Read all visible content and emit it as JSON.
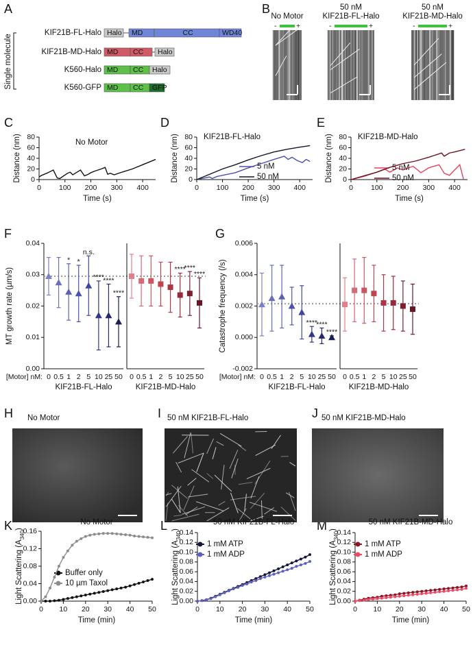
{
  "panel_labels": [
    "A",
    "B",
    "C",
    "D",
    "E",
    "F",
    "G",
    "H",
    "I",
    "J",
    "K",
    "L",
    "M"
  ],
  "diagram": {
    "ylabel": "Single molecule",
    "constructs": [
      {
        "name": "KIF21B-FL-Halo",
        "domains": [
          "Halo",
          "MD",
          "CC",
          "WD40"
        ]
      },
      {
        "name": "KIF21B-MD-Halo",
        "domains": [
          "MD",
          "CC",
          "Halo"
        ]
      },
      {
        "name": "K560-Halo",
        "domains": [
          "MD",
          "CC",
          "Halo"
        ]
      },
      {
        "name": "K560-GFP",
        "domains": [
          "MD",
          "CC",
          "GFP"
        ]
      }
    ]
  },
  "kymographs": {
    "titles": [
      [
        "No Motor"
      ],
      [
        "50 nM",
        "KIF21B-FL-Halo"
      ],
      [
        "50 nM",
        "KIF21B-MD-Halo"
      ]
    ],
    "minus": "-",
    "plus": "+"
  },
  "images": {
    "titles": [
      "No Motor",
      "50 nM KIF21B-FL-Halo",
      "50 nM KIF21B-MD-Halo"
    ]
  },
  "chart_data": [
    {
      "type": "line",
      "title": "No Motor",
      "xlabel": "Time (s)",
      "ylabel": "Distance (nm)",
      "xlim": [
        0,
        450
      ],
      "xticks": [
        0,
        100,
        200,
        300,
        400
      ],
      "ylim": [
        0,
        80
      ],
      "yticks": [
        0,
        20,
        40,
        60,
        80
      ],
      "series": [
        {
          "color": "#111111",
          "x": [
            0,
            10,
            30,
            55,
            70,
            80,
            110,
            120,
            130,
            140,
            160,
            175,
            190,
            200,
            215,
            240,
            255,
            265,
            275,
            290,
            320,
            360,
            400,
            450
          ],
          "values": [
            5,
            8,
            12,
            18,
            3,
            2,
            12,
            14,
            9,
            12,
            18,
            7,
            10,
            13,
            16,
            20,
            23,
            10,
            12,
            9,
            14,
            20,
            28,
            38
          ]
        }
      ]
    },
    {
      "type": "line",
      "title": "KIF21B-FL-Halo",
      "xlabel": "Time (s)",
      "ylabel": "Distance (nm)",
      "xlim": [
        0,
        450
      ],
      "xticks": [
        0,
        100,
        200,
        300,
        400
      ],
      "ylim": [
        0,
        80
      ],
      "yticks": [
        0,
        20,
        40,
        60,
        80
      ],
      "series": [
        {
          "name": "5 nM",
          "color": "#4b4fae",
          "x": [
            0,
            30,
            50,
            60,
            80,
            100,
            150,
            200,
            250,
            300,
            340,
            355,
            370,
            390,
            410,
            425,
            440
          ],
          "values": [
            0,
            3,
            5,
            2,
            6,
            8,
            13,
            22,
            30,
            38,
            44,
            38,
            42,
            36,
            32,
            38,
            34
          ]
        },
        {
          "name": "50 nM",
          "color": "#141428",
          "x": [
            0,
            50,
            100,
            150,
            200,
            250,
            300,
            350,
            400,
            440
          ],
          "values": [
            0,
            10,
            20,
            28,
            37,
            45,
            52,
            57,
            61,
            64
          ]
        }
      ]
    },
    {
      "type": "line",
      "title": "KIF21B-MD-Halo",
      "xlabel": "Time (s)",
      "ylabel": "Distance (nm)",
      "xlim": [
        0,
        450
      ],
      "xticks": [
        0,
        100,
        200,
        300,
        400
      ],
      "ylim": [
        0,
        80
      ],
      "yticks": [
        0,
        20,
        40,
        60,
        80
      ],
      "series": [
        {
          "name": "5 nM",
          "color": "#e8405a",
          "x": [
            0,
            50,
            100,
            130,
            150,
            180,
            200,
            240,
            270,
            300,
            340,
            360,
            380,
            420,
            435
          ],
          "values": [
            0,
            6,
            14,
            20,
            14,
            22,
            18,
            25,
            13,
            22,
            28,
            12,
            8,
            28,
            0
          ]
        },
        {
          "name": "50 nM",
          "color": "#6e1020",
          "x": [
            0,
            50,
            100,
            150,
            200,
            250,
            300,
            350,
            360,
            380,
            400,
            440
          ],
          "values": [
            0,
            7,
            14,
            23,
            30,
            35,
            42,
            50,
            44,
            50,
            52,
            57
          ]
        }
      ]
    },
    {
      "type": "dots",
      "ylabel": "MT growth rate (µm/s)",
      "xlabel": "[Motor] nM:",
      "categories": [
        "0",
        "0.5",
        "1",
        "2",
        "5",
        "10",
        "25",
        "50"
      ],
      "ylim": [
        0,
        0.04
      ],
      "yticks": [
        {
          "value": 0,
          "label": "0.00"
        },
        0.01,
        0.02,
        0.03,
        0.04
      ],
      "reference": 0.0295,
      "series": [
        {
          "name": "KIF21B-FL-Halo",
          "marker": "triangle",
          "colors": [
            "#7b7fc4",
            "#6a6fbd",
            "#5a60b5",
            "#4b52ad",
            "#3e46a0",
            "#2f3786",
            "#24296b",
            "#1b1e52"
          ],
          "values": [
            0.0295,
            0.0275,
            0.0245,
            0.024,
            0.0265,
            0.017,
            0.017,
            0.015
          ],
          "errors": [
            0.006,
            0.008,
            0.009,
            0.009,
            0.0095,
            0.011,
            0.01,
            0.008
          ],
          "annotations": [
            null,
            null,
            "*",
            "*",
            "n.s.",
            "****",
            "****",
            "****"
          ]
        },
        {
          "name": "KIF21B-MD-Halo",
          "marker": "square",
          "colors": [
            "#e0808a",
            "#d46a75",
            "#c95662",
            "#be4452",
            "#ad3646",
            "#96293a",
            "#7e1f30",
            "#661827"
          ],
          "values": [
            0.0295,
            0.028,
            0.028,
            0.027,
            0.026,
            0.0235,
            0.024,
            0.021
          ],
          "errors": [
            0.007,
            0.008,
            0.008,
            0.007,
            0.008,
            0.007,
            0.007,
            0.008
          ],
          "annotations": [
            null,
            null,
            null,
            null,
            null,
            "****",
            "****",
            "****"
          ]
        }
      ]
    },
    {
      "type": "dots",
      "ylabel": "Catastrophe frequency (/s)",
      "xlabel": "[Motor] nM:",
      "categories": [
        "0",
        "0.5",
        "1",
        "2",
        "5",
        "10",
        "25",
        "50"
      ],
      "ylim": [
        -0.002,
        0.006
      ],
      "yticks": [
        -0.002,
        {
          "value": 0,
          "label": "0.000"
        },
        0.002,
        0.004,
        0.006
      ],
      "reference": 0.00215,
      "series": [
        {
          "name": "KIF21B-FL-Halo",
          "marker": "triangle",
          "colors": [
            "#7b7fc4",
            "#6a6fbd",
            "#5a60b5",
            "#4b52ad",
            "#3e46a0",
            "#2f3786",
            "#24296b",
            "#1b1e52"
          ],
          "values": [
            0.0021,
            0.0025,
            0.0026,
            0.002,
            0.0016,
            0.0002,
            0.0001,
            0
          ],
          "errors": [
            0.002,
            0.0021,
            0.002,
            0.0012,
            0.0017,
            0.0005,
            0.0005,
            0.0001
          ],
          "annotations": [
            null,
            null,
            null,
            null,
            null,
            "****",
            "****",
            "****"
          ]
        },
        {
          "name": "KIF21B-MD-Halo",
          "marker": "square",
          "colors": [
            "#e0808a",
            "#d46a75",
            "#c95662",
            "#be4452",
            "#ad3646",
            "#96293a",
            "#7e1f30",
            "#661827"
          ],
          "values": [
            0.0021,
            0.003,
            0.003,
            0.0028,
            0.0022,
            0.0022,
            0.002,
            0.0018
          ],
          "errors": [
            0.0017,
            0.002,
            0.0021,
            0.0018,
            0.0018,
            0.0017,
            0.0016,
            0.0016
          ],
          "annotations": [
            null,
            null,
            null,
            null,
            null,
            null,
            null,
            null
          ]
        }
      ]
    },
    {
      "type": "line",
      "markers": true,
      "title": "No Motor",
      "xlabel": "Time (min)",
      "ylabel": [
        "Light Scattering (A",
        "340",
        ")"
      ],
      "xlim": [
        0,
        50
      ],
      "xticks": [
        0,
        10,
        20,
        30,
        40,
        50
      ],
      "ylim": [
        0,
        0.16
      ],
      "yticks": [
        {
          "value": 0,
          "label": "0.00"
        },
        0.04,
        0.08,
        0.12,
        0.16
      ],
      "series": [
        {
          "name": "Buffer only",
          "color": "#111111",
          "x": [
            0,
            2,
            4,
            6,
            8,
            10,
            12,
            14,
            16,
            18,
            20,
            22,
            24,
            26,
            28,
            30,
            32,
            34,
            36,
            38,
            40,
            42,
            44,
            46,
            48,
            50
          ],
          "values": [
            0,
            0,
            0,
            0.001,
            0.002,
            0.004,
            0.006,
            0.008,
            0.01,
            0.012,
            0.014,
            0.016,
            0.018,
            0.02,
            0.022,
            0.024,
            0.026,
            0.028,
            0.03,
            0.032,
            0.035,
            0.038,
            0.041,
            0.044,
            0.047,
            0.05
          ]
        },
        {
          "name": "10 µm Taxol",
          "color": "#8c8c8c",
          "x": [
            0,
            2,
            4,
            6,
            8,
            10,
            12,
            14,
            16,
            18,
            20,
            22,
            24,
            26,
            28,
            30,
            32,
            34,
            36,
            38,
            40,
            42,
            44,
            46,
            48,
            50
          ],
          "values": [
            0,
            0.01,
            0.03,
            0.055,
            0.08,
            0.1,
            0.115,
            0.128,
            0.137,
            0.143,
            0.148,
            0.151,
            0.153,
            0.154,
            0.155,
            0.155,
            0.155,
            0.154,
            0.153,
            0.152,
            0.151,
            0.149,
            0.148,
            0.147,
            0.146,
            0.145
          ]
        }
      ]
    },
    {
      "type": "line",
      "markers": true,
      "title": "50 nM KIF21B-FL-Halo",
      "xlabel": "Time (min)",
      "ylabel": [
        "Light Scattering (A",
        "340",
        ")"
      ],
      "xlim": [
        0,
        50
      ],
      "xticks": [
        0,
        10,
        20,
        30,
        40,
        50
      ],
      "ylim": [
        0,
        0.14
      ],
      "yticks": [
        {
          "value": 0,
          "label": "0.00"
        },
        0.02,
        0.04,
        0.06,
        0.08,
        {
          "value": 0.1,
          "label": "0.10"
        },
        0.12,
        0.14
      ],
      "series": [
        {
          "name": "1 mM ATP",
          "color": "#15173a",
          "x": [
            0,
            2,
            4,
            6,
            8,
            10,
            12,
            14,
            16,
            18,
            20,
            22,
            24,
            26,
            28,
            30,
            32,
            34,
            36,
            38,
            40,
            42,
            44,
            46,
            48,
            50
          ],
          "values": [
            0,
            0.001,
            0.003,
            0.006,
            0.01,
            0.014,
            0.018,
            0.022,
            0.026,
            0.03,
            0.034,
            0.038,
            0.042,
            0.046,
            0.05,
            0.054,
            0.058,
            0.062,
            0.066,
            0.07,
            0.074,
            0.078,
            0.082,
            0.086,
            0.09,
            0.095
          ]
        },
        {
          "name": "1 mM ADP",
          "color": "#5a5fc0",
          "x": [
            0,
            2,
            4,
            6,
            8,
            10,
            12,
            14,
            16,
            18,
            20,
            22,
            24,
            26,
            28,
            30,
            32,
            34,
            36,
            38,
            40,
            42,
            44,
            46,
            48,
            50
          ],
          "values": [
            0,
            0.001,
            0.003,
            0.005,
            0.009,
            0.013,
            0.017,
            0.021,
            0.025,
            0.028,
            0.032,
            0.035,
            0.039,
            0.042,
            0.046,
            0.049,
            0.052,
            0.055,
            0.058,
            0.061,
            0.064,
            0.067,
            0.071,
            0.074,
            0.077,
            0.081
          ]
        }
      ]
    },
    {
      "type": "line",
      "markers": true,
      "title": "50 nM KIF21B-MD-Halo",
      "xlabel": "Time (min)",
      "ylabel": [
        "Light Scattering (A",
        "340",
        ")"
      ],
      "xlim": [
        0,
        50
      ],
      "xticks": [
        0,
        10,
        20,
        30,
        40,
        50
      ],
      "ylim": [
        0,
        0.14
      ],
      "yticks": [
        {
          "value": 0,
          "label": "0.00"
        },
        0.02,
        0.04,
        0.06,
        0.08,
        {
          "value": 0.1,
          "label": "0.10"
        },
        0.12,
        0.14
      ],
      "series": [
        {
          "name": "1 mM ATP",
          "color": "#8e1424",
          "x": [
            0,
            2,
            4,
            6,
            8,
            10,
            12,
            14,
            16,
            18,
            20,
            22,
            24,
            26,
            28,
            30,
            32,
            34,
            36,
            38,
            40,
            42,
            44,
            46,
            48,
            50
          ],
          "values": [
            0,
            0.002,
            0.004,
            0.006,
            0.007,
            0.008,
            0.01,
            0.011,
            0.012,
            0.013,
            0.015,
            0.016,
            0.017,
            0.018,
            0.019,
            0.02,
            0.021,
            0.022,
            0.023,
            0.024,
            0.025,
            0.026,
            0.027,
            0.028,
            0.029,
            0.031
          ]
        },
        {
          "name": "1 mM ADP",
          "color": "#ee4a66",
          "x": [
            0,
            2,
            4,
            6,
            8,
            10,
            12,
            14,
            16,
            18,
            20,
            22,
            24,
            26,
            28,
            30,
            32,
            34,
            36,
            38,
            40,
            42,
            44,
            46,
            48,
            50
          ],
          "values": [
            0,
            0.001,
            0.002,
            0.003,
            0.004,
            0.005,
            0.006,
            0.007,
            0.008,
            0.009,
            0.01,
            0.011,
            0.012,
            0.013,
            0.014,
            0.015,
            0.016,
            0.017,
            0.018,
            0.019,
            0.02,
            0.021,
            0.022,
            0.023,
            0.024,
            0.026
          ]
        }
      ]
    }
  ]
}
